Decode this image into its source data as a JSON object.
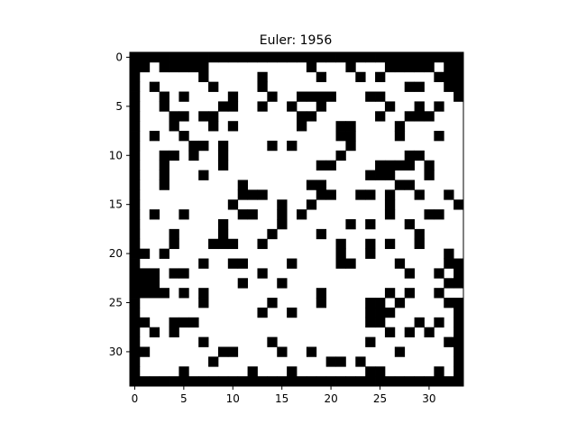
{
  "chart_data": {
    "type": "heatmap",
    "title": "Euler: 1956",
    "rows": 34,
    "cols": 34,
    "xlim": [
      -0.5,
      33.5
    ],
    "ylim": [
      33.5,
      -0.5
    ],
    "xticks": [
      "0",
      "5",
      "10",
      "15",
      "20",
      "25",
      "30"
    ],
    "yticks": [
      "0",
      "5",
      "10",
      "15",
      "20",
      "25",
      "30"
    ],
    "colormap": {
      "0": "#ffffff",
      "1": "#000000"
    },
    "grid": false,
    "black_cells": [
      [
        0,
        0
      ],
      [
        0,
        1
      ],
      [
        0,
        2
      ],
      [
        0,
        3
      ],
      [
        0,
        4
      ],
      [
        0,
        5
      ],
      [
        0,
        6
      ],
      [
        0,
        7
      ],
      [
        0,
        8
      ],
      [
        0,
        9
      ],
      [
        0,
        10
      ],
      [
        0,
        11
      ],
      [
        0,
        12
      ],
      [
        0,
        13
      ],
      [
        0,
        14
      ],
      [
        0,
        15
      ],
      [
        0,
        16
      ],
      [
        0,
        17
      ],
      [
        0,
        18
      ],
      [
        0,
        19
      ],
      [
        0,
        20
      ],
      [
        0,
        21
      ],
      [
        0,
        22
      ],
      [
        0,
        23
      ],
      [
        0,
        24
      ],
      [
        0,
        25
      ],
      [
        0,
        26
      ],
      [
        0,
        27
      ],
      [
        0,
        28
      ],
      [
        0,
        29
      ],
      [
        0,
        30
      ],
      [
        0,
        31
      ],
      [
        0,
        32
      ],
      [
        0,
        33
      ],
      [
        1,
        0
      ],
      [
        1,
        1
      ],
      [
        1,
        3
      ],
      [
        1,
        4
      ],
      [
        1,
        5
      ],
      [
        1,
        6
      ],
      [
        1,
        7
      ],
      [
        1,
        18
      ],
      [
        1,
        22
      ],
      [
        1,
        26
      ],
      [
        1,
        27
      ],
      [
        1,
        28
      ],
      [
        1,
        29
      ],
      [
        1,
        30
      ],
      [
        1,
        32
      ],
      [
        1,
        33
      ],
      [
        2,
        0
      ],
      [
        2,
        7
      ],
      [
        2,
        13
      ],
      [
        2,
        19
      ],
      [
        2,
        23
      ],
      [
        2,
        25
      ],
      [
        2,
        31
      ],
      [
        2,
        32
      ],
      [
        2,
        33
      ],
      [
        3,
        0
      ],
      [
        3,
        2
      ],
      [
        3,
        8
      ],
      [
        3,
        13
      ],
      [
        3,
        28
      ],
      [
        3,
        29
      ],
      [
        3,
        32
      ],
      [
        3,
        33
      ],
      [
        4,
        0
      ],
      [
        4,
        3
      ],
      [
        4,
        5
      ],
      [
        4,
        10
      ],
      [
        4,
        14
      ],
      [
        4,
        17
      ],
      [
        4,
        18
      ],
      [
        4,
        19
      ],
      [
        4,
        20
      ],
      [
        4,
        24
      ],
      [
        4,
        25
      ],
      [
        4,
        33
      ],
      [
        5,
        0
      ],
      [
        5,
        3
      ],
      [
        5,
        9
      ],
      [
        5,
        10
      ],
      [
        5,
        13
      ],
      [
        5,
        16
      ],
      [
        5,
        19
      ],
      [
        5,
        26
      ],
      [
        5,
        29
      ],
      [
        5,
        31
      ],
      [
        6,
        0
      ],
      [
        6,
        4
      ],
      [
        6,
        5
      ],
      [
        6,
        7
      ],
      [
        6,
        8
      ],
      [
        6,
        17
      ],
      [
        6,
        18
      ],
      [
        6,
        25
      ],
      [
        6,
        28
      ],
      [
        6,
        29
      ],
      [
        6,
        30
      ],
      [
        7,
        0
      ],
      [
        7,
        4
      ],
      [
        7,
        8
      ],
      [
        7,
        10
      ],
      [
        7,
        17
      ],
      [
        7,
        21
      ],
      [
        7,
        22
      ],
      [
        7,
        27
      ],
      [
        8,
        0
      ],
      [
        8,
        2
      ],
      [
        8,
        5
      ],
      [
        8,
        21
      ],
      [
        8,
        22
      ],
      [
        8,
        27
      ],
      [
        8,
        31
      ],
      [
        9,
        0
      ],
      [
        9,
        6
      ],
      [
        9,
        7
      ],
      [
        9,
        9
      ],
      [
        9,
        14
      ],
      [
        9,
        16
      ],
      [
        9,
        22
      ],
      [
        10,
        0
      ],
      [
        10,
        3
      ],
      [
        10,
        4
      ],
      [
        10,
        6
      ],
      [
        10,
        9
      ],
      [
        10,
        21
      ],
      [
        10,
        28
      ],
      [
        10,
        29
      ],
      [
        11,
        0
      ],
      [
        11,
        3
      ],
      [
        11,
        9
      ],
      [
        11,
        19
      ],
      [
        11,
        20
      ],
      [
        11,
        25
      ],
      [
        11,
        26
      ],
      [
        11,
        27
      ],
      [
        11,
        28
      ],
      [
        11,
        30
      ],
      [
        12,
        0
      ],
      [
        12,
        3
      ],
      [
        12,
        7
      ],
      [
        12,
        24
      ],
      [
        12,
        25
      ],
      [
        12,
        26
      ],
      [
        12,
        30
      ],
      [
        13,
        0
      ],
      [
        13,
        3
      ],
      [
        13,
        11
      ],
      [
        13,
        18
      ],
      [
        13,
        19
      ],
      [
        13,
        27
      ],
      [
        13,
        28
      ],
      [
        14,
        0
      ],
      [
        14,
        11
      ],
      [
        14,
        12
      ],
      [
        14,
        13
      ],
      [
        14,
        19
      ],
      [
        14,
        20
      ],
      [
        14,
        23
      ],
      [
        14,
        24
      ],
      [
        14,
        26
      ],
      [
        14,
        29
      ],
      [
        14,
        32
      ],
      [
        15,
        0
      ],
      [
        15,
        10
      ],
      [
        15,
        15
      ],
      [
        15,
        18
      ],
      [
        15,
        26
      ],
      [
        15,
        33
      ],
      [
        16,
        0
      ],
      [
        16,
        2
      ],
      [
        16,
        5
      ],
      [
        16,
        11
      ],
      [
        16,
        12
      ],
      [
        16,
        15
      ],
      [
        16,
        17
      ],
      [
        16,
        26
      ],
      [
        16,
        30
      ],
      [
        16,
        31
      ],
      [
        17,
        0
      ],
      [
        17,
        9
      ],
      [
        17,
        15
      ],
      [
        17,
        22
      ],
      [
        17,
        24
      ],
      [
        17,
        28
      ],
      [
        18,
        0
      ],
      [
        18,
        4
      ],
      [
        18,
        9
      ],
      [
        18,
        14
      ],
      [
        18,
        19
      ],
      [
        18,
        29
      ],
      [
        19,
        0
      ],
      [
        19,
        4
      ],
      [
        19,
        8
      ],
      [
        19,
        9
      ],
      [
        19,
        10
      ],
      [
        19,
        13
      ],
      [
        19,
        21
      ],
      [
        19,
        24
      ],
      [
        19,
        26
      ],
      [
        19,
        29
      ],
      [
        20,
        0
      ],
      [
        20,
        1
      ],
      [
        20,
        3
      ],
      [
        20,
        21
      ],
      [
        20,
        24
      ],
      [
        20,
        32
      ],
      [
        21,
        0
      ],
      [
        21,
        7
      ],
      [
        21,
        10
      ],
      [
        21,
        11
      ],
      [
        21,
        16
      ],
      [
        21,
        21
      ],
      [
        21,
        22
      ],
      [
        21,
        27
      ],
      [
        21,
        32
      ],
      [
        21,
        33
      ],
      [
        22,
        0
      ],
      [
        22,
        1
      ],
      [
        22,
        2
      ],
      [
        22,
        4
      ],
      [
        22,
        5
      ],
      [
        22,
        13
      ],
      [
        22,
        28
      ],
      [
        22,
        31
      ],
      [
        22,
        33
      ],
      [
        23,
        0
      ],
      [
        23,
        1
      ],
      [
        23,
        2
      ],
      [
        23,
        11
      ],
      [
        23,
        15
      ],
      [
        23,
        32
      ],
      [
        23,
        33
      ],
      [
        24,
        0
      ],
      [
        24,
        1
      ],
      [
        24,
        2
      ],
      [
        24,
        3
      ],
      [
        24,
        5
      ],
      [
        24,
        7
      ],
      [
        24,
        19
      ],
      [
        24,
        26
      ],
      [
        24,
        28
      ],
      [
        24,
        31
      ],
      [
        25,
        0
      ],
      [
        25,
        7
      ],
      [
        25,
        14
      ],
      [
        25,
        19
      ],
      [
        25,
        24
      ],
      [
        25,
        25
      ],
      [
        25,
        27
      ],
      [
        25,
        32
      ],
      [
        25,
        33
      ],
      [
        26,
        0
      ],
      [
        26,
        13
      ],
      [
        26,
        16
      ],
      [
        26,
        24
      ],
      [
        26,
        25
      ],
      [
        26,
        26
      ],
      [
        26,
        33
      ],
      [
        27,
        0
      ],
      [
        27,
        1
      ],
      [
        27,
        4
      ],
      [
        27,
        5
      ],
      [
        27,
        6
      ],
      [
        27,
        24
      ],
      [
        27,
        25
      ],
      [
        27,
        29
      ],
      [
        27,
        31
      ],
      [
        27,
        33
      ],
      [
        28,
        0
      ],
      [
        28,
        2
      ],
      [
        28,
        4
      ],
      [
        28,
        26
      ],
      [
        28,
        28
      ],
      [
        28,
        30
      ],
      [
        28,
        33
      ],
      [
        29,
        0
      ],
      [
        29,
        7
      ],
      [
        29,
        14
      ],
      [
        29,
        24
      ],
      [
        29,
        32
      ],
      [
        29,
        33
      ],
      [
        30,
        0
      ],
      [
        30,
        1
      ],
      [
        30,
        9
      ],
      [
        30,
        10
      ],
      [
        30,
        15
      ],
      [
        30,
        18
      ],
      [
        30,
        27
      ],
      [
        30,
        33
      ],
      [
        31,
        0
      ],
      [
        31,
        8
      ],
      [
        31,
        20
      ],
      [
        31,
        21
      ],
      [
        31,
        23
      ],
      [
        31,
        33
      ],
      [
        32,
        0
      ],
      [
        32,
        5
      ],
      [
        32,
        12
      ],
      [
        32,
        16
      ],
      [
        32,
        24
      ],
      [
        32,
        25
      ],
      [
        32,
        31
      ],
      [
        32,
        33
      ],
      [
        33,
        0
      ],
      [
        33,
        1
      ],
      [
        33,
        2
      ],
      [
        33,
        3
      ],
      [
        33,
        4
      ],
      [
        33,
        5
      ],
      [
        33,
        6
      ],
      [
        33,
        7
      ],
      [
        33,
        8
      ],
      [
        33,
        9
      ],
      [
        33,
        10
      ],
      [
        33,
        11
      ],
      [
        33,
        12
      ],
      [
        33,
        13
      ],
      [
        33,
        14
      ],
      [
        33,
        15
      ],
      [
        33,
        16
      ],
      [
        33,
        17
      ],
      [
        33,
        18
      ],
      [
        33,
        19
      ],
      [
        33,
        20
      ],
      [
        33,
        21
      ],
      [
        33,
        22
      ],
      [
        33,
        23
      ],
      [
        33,
        24
      ],
      [
        33,
        25
      ],
      [
        33,
        26
      ],
      [
        33,
        27
      ],
      [
        33,
        28
      ],
      [
        33,
        29
      ],
      [
        33,
        30
      ],
      [
        33,
        31
      ],
      [
        33,
        32
      ],
      [
        33,
        33
      ]
    ]
  }
}
